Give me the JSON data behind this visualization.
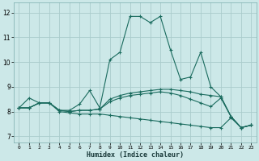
{
  "xlabel": "Humidex (Indice chaleur)",
  "xlim": [
    -0.5,
    23.5
  ],
  "ylim": [
    6.75,
    12.4
  ],
  "yticks": [
    7,
    8,
    9,
    10,
    11,
    12
  ],
  "xticks": [
    0,
    1,
    2,
    3,
    4,
    5,
    6,
    7,
    8,
    9,
    10,
    11,
    12,
    13,
    14,
    15,
    16,
    17,
    18,
    19,
    20,
    21,
    22,
    23
  ],
  "bg_color": "#cce8e8",
  "grid_color": "#b0d0d0",
  "line_color": "#1a6b5e",
  "lines": [
    {
      "x": [
        0,
        1,
        2,
        3,
        4,
        5,
        6,
        7,
        8,
        9,
        10,
        11,
        12,
        13,
        14,
        15,
        16,
        17,
        18,
        19,
        20,
        21,
        22,
        23
      ],
      "y": [
        8.15,
        8.55,
        8.35,
        8.35,
        8.05,
        8.05,
        8.3,
        8.85,
        8.15,
        10.1,
        10.4,
        11.85,
        11.85,
        11.6,
        11.85,
        10.5,
        9.3,
        9.4,
        10.4,
        9.0,
        8.6,
        7.8,
        7.35,
        7.45
      ]
    },
    {
      "x": [
        0,
        1,
        2,
        3,
        4,
        5,
        6,
        7,
        8,
        9,
        10,
        11,
        12,
        13,
        14,
        15,
        16,
        17,
        18,
        19,
        20,
        21,
        22,
        23
      ],
      "y": [
        8.15,
        8.15,
        8.35,
        8.35,
        8.05,
        8.0,
        8.05,
        8.05,
        8.1,
        8.5,
        8.65,
        8.75,
        8.8,
        8.85,
        8.9,
        8.9,
        8.85,
        8.8,
        8.7,
        8.65,
        8.6,
        7.8,
        7.35,
        7.45
      ]
    },
    {
      "x": [
        0,
        1,
        2,
        3,
        4,
        5,
        6,
        7,
        8,
        9,
        10,
        11,
        12,
        13,
        14,
        15,
        16,
        17,
        18,
        19,
        20,
        21,
        22,
        23
      ],
      "y": [
        8.15,
        8.15,
        8.35,
        8.35,
        8.05,
        8.0,
        8.05,
        8.05,
        8.1,
        8.4,
        8.55,
        8.65,
        8.7,
        8.75,
        8.8,
        8.75,
        8.65,
        8.5,
        8.35,
        8.2,
        8.55,
        7.8,
        7.35,
        7.45
      ]
    },
    {
      "x": [
        0,
        1,
        2,
        3,
        4,
        5,
        6,
        7,
        8,
        9,
        10,
        11,
        12,
        13,
        14,
        15,
        16,
        17,
        18,
        19,
        20,
        21,
        22,
        23
      ],
      "y": [
        8.15,
        8.15,
        8.35,
        8.35,
        8.0,
        7.95,
        7.9,
        7.9,
        7.9,
        7.85,
        7.8,
        7.75,
        7.7,
        7.65,
        7.6,
        7.55,
        7.5,
        7.45,
        7.4,
        7.35,
        7.35,
        7.75,
        7.35,
        7.45
      ]
    }
  ]
}
